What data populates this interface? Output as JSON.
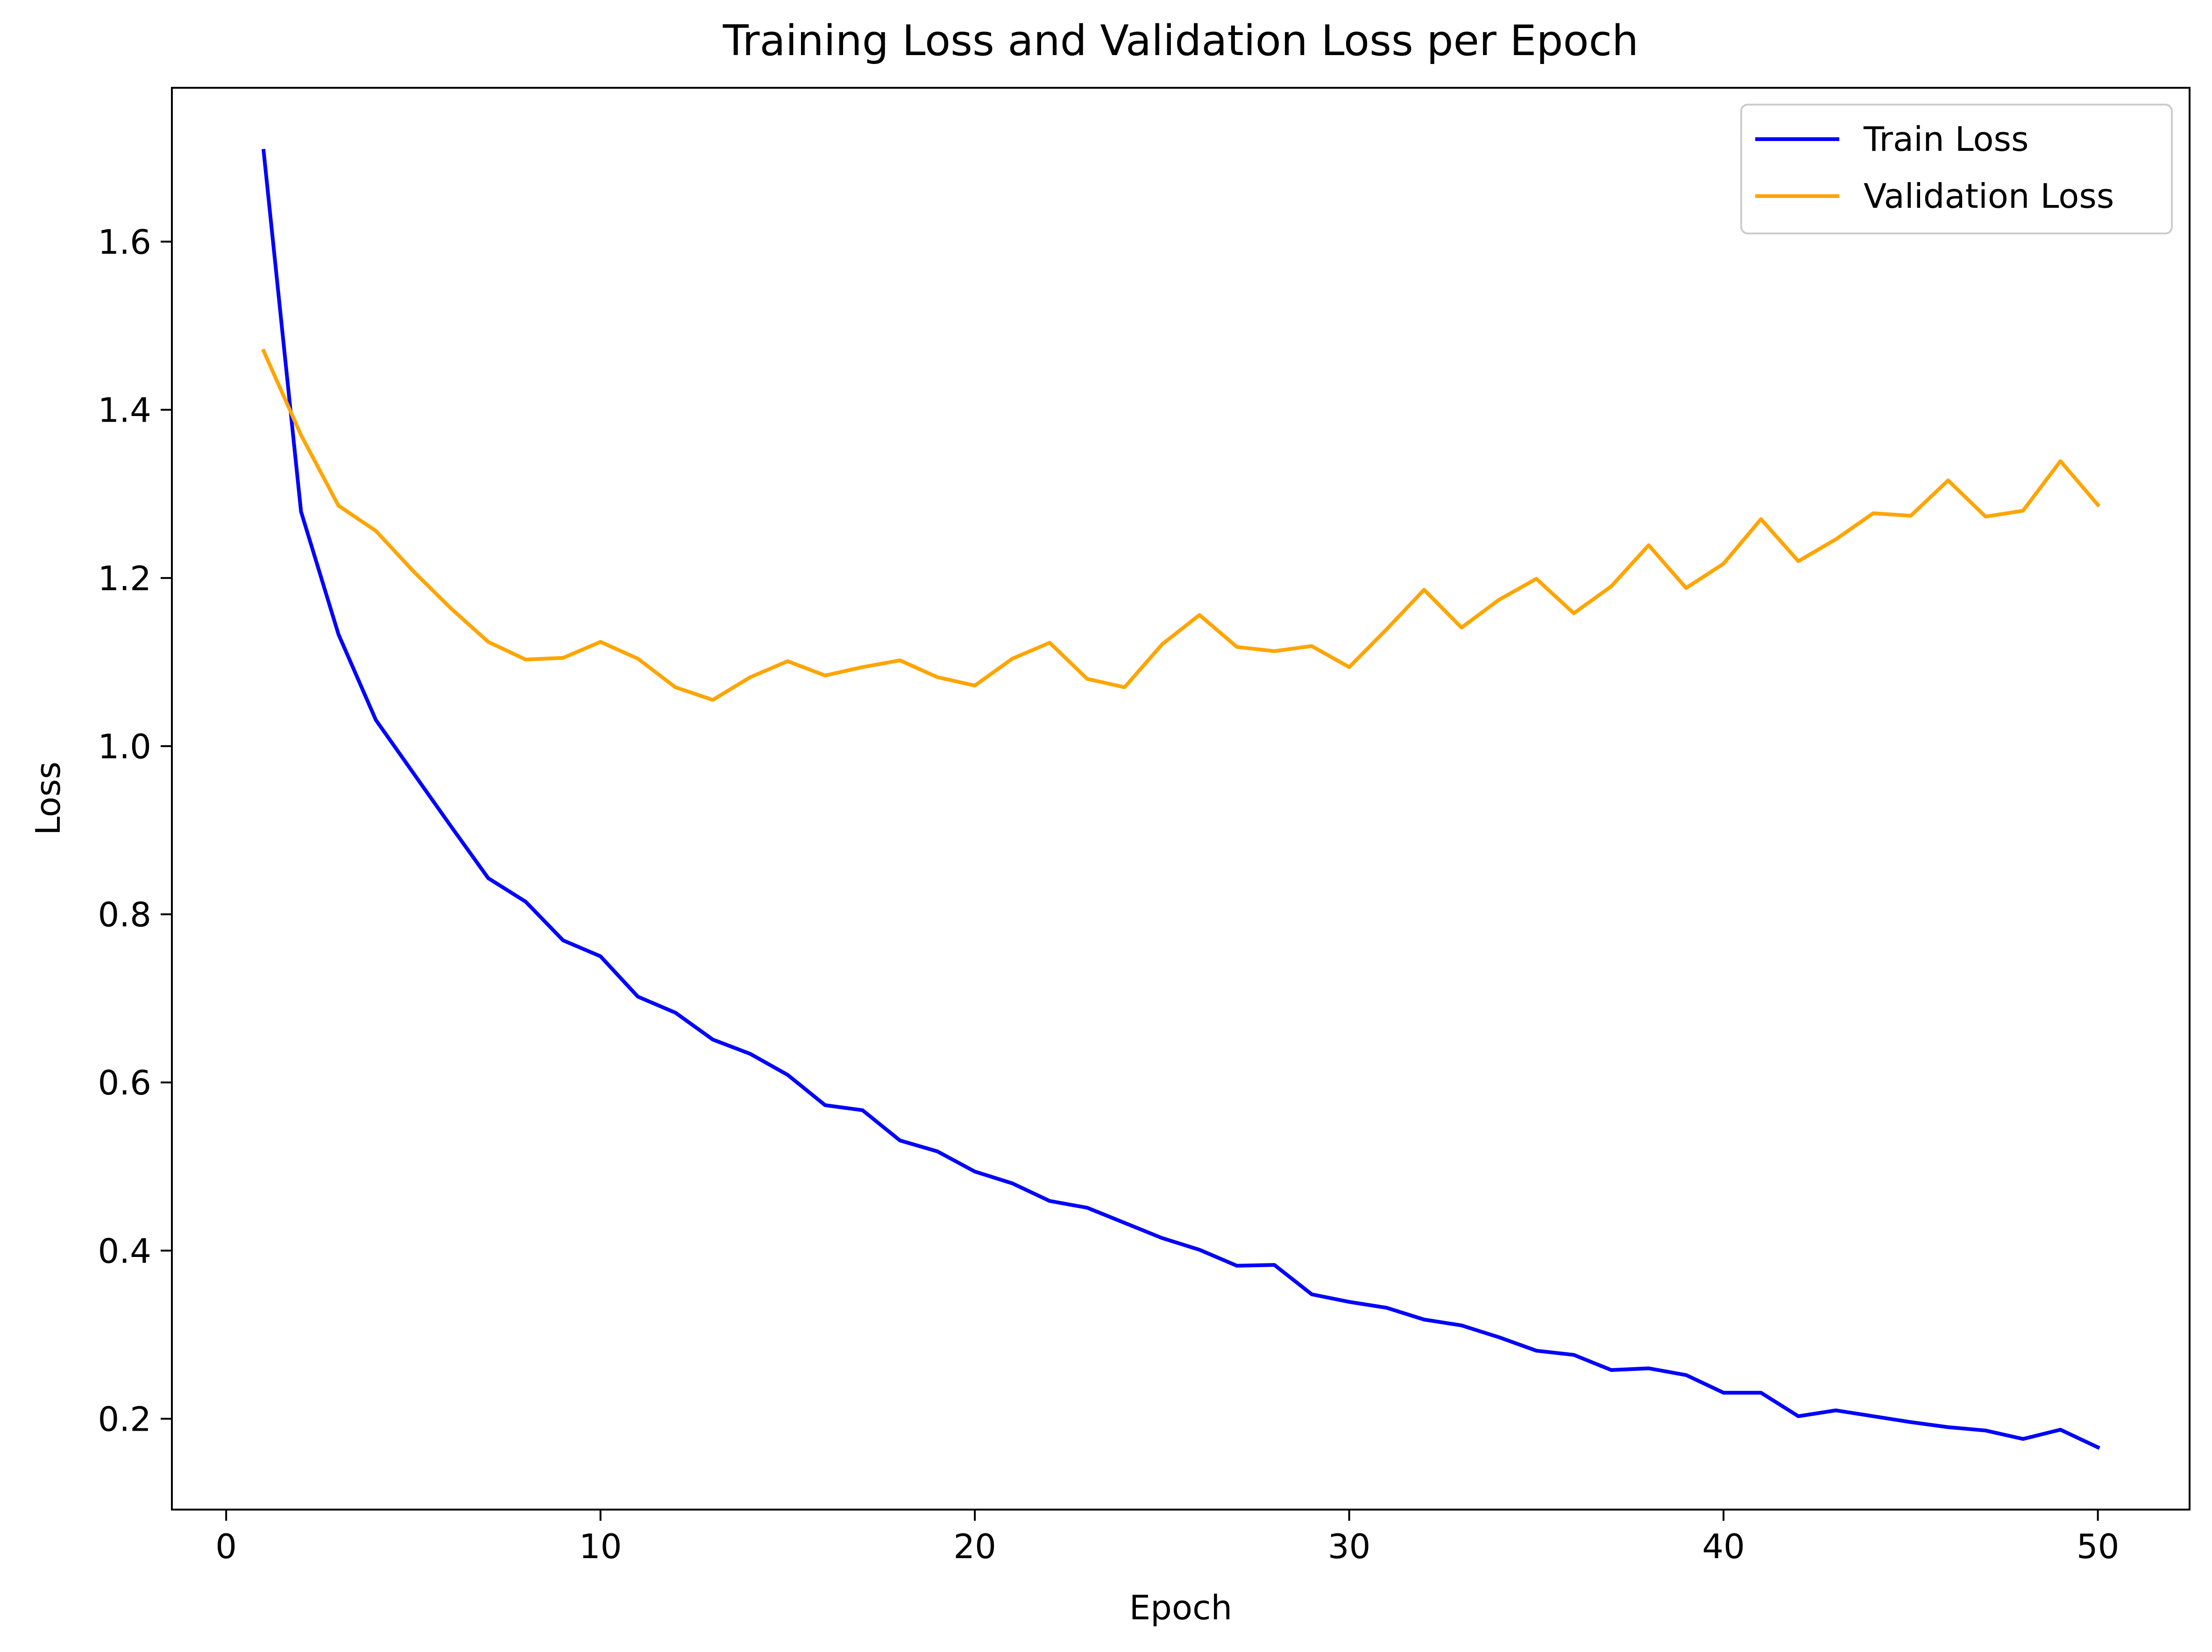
{
  "chart_data": {
    "type": "line",
    "title": "Training Loss and Validation Loss per Epoch",
    "xlabel": "Epoch",
    "ylabel": "Loss",
    "xlim": [
      -1.45,
      52.45
    ],
    "ylim": [
      0.092,
      1.783
    ],
    "xticks": [
      0,
      10,
      20,
      30,
      40,
      50
    ],
    "xtick_labels": [
      "0",
      "10",
      "20",
      "30",
      "40",
      "50"
    ],
    "yticks": [
      0.2,
      0.4,
      0.6,
      0.8,
      1.0,
      1.2,
      1.4,
      1.6
    ],
    "ytick_labels": [
      "0.2",
      "0.4",
      "0.6",
      "0.8",
      "1.0",
      "1.2",
      "1.4",
      "1.6"
    ],
    "grid": false,
    "legend_position": "upper right",
    "x": [
      1,
      2,
      3,
      4,
      5,
      6,
      7,
      8,
      9,
      10,
      11,
      12,
      13,
      14,
      15,
      16,
      17,
      18,
      19,
      20,
      21,
      22,
      23,
      24,
      25,
      26,
      27,
      28,
      29,
      30,
      31,
      32,
      33,
      34,
      35,
      36,
      37,
      38,
      39,
      40,
      41,
      42,
      43,
      44,
      45,
      46,
      47,
      48,
      49,
      50
    ],
    "series": [
      {
        "name": "Train Loss",
        "color": "#0000ff",
        "values": [
          1.708,
          1.279,
          1.133,
          1.031,
          0.968,
          0.905,
          0.843,
          0.815,
          0.769,
          0.75,
          0.702,
          0.683,
          0.651,
          0.634,
          0.609,
          0.573,
          0.567,
          0.531,
          0.518,
          0.494,
          0.48,
          0.459,
          0.451,
          0.433,
          0.415,
          0.401,
          0.382,
          0.383,
          0.348,
          0.339,
          0.332,
          0.318,
          0.311,
          0.297,
          0.281,
          0.276,
          0.258,
          0.26,
          0.252,
          0.231,
          0.231,
          0.203,
          0.21,
          0.203,
          0.196,
          0.19,
          0.186,
          0.176,
          0.187,
          0.166
        ]
      },
      {
        "name": "Validation Loss",
        "color": "#ffa500",
        "values": [
          1.47,
          1.37,
          1.286,
          1.256,
          1.208,
          1.164,
          1.124,
          1.103,
          1.105,
          1.124,
          1.104,
          1.07,
          1.055,
          1.082,
          1.101,
          1.084,
          1.094,
          1.102,
          1.082,
          1.072,
          1.104,
          1.123,
          1.08,
          1.07,
          1.121,
          1.156,
          1.118,
          1.113,
          1.119,
          1.094,
          1.139,
          1.186,
          1.141,
          1.174,
          1.199,
          1.158,
          1.19,
          1.239,
          1.188,
          1.217,
          1.27,
          1.22,
          1.246,
          1.277,
          1.274,
          1.316,
          1.273,
          1.28,
          1.339,
          1.287
        ]
      }
    ]
  }
}
